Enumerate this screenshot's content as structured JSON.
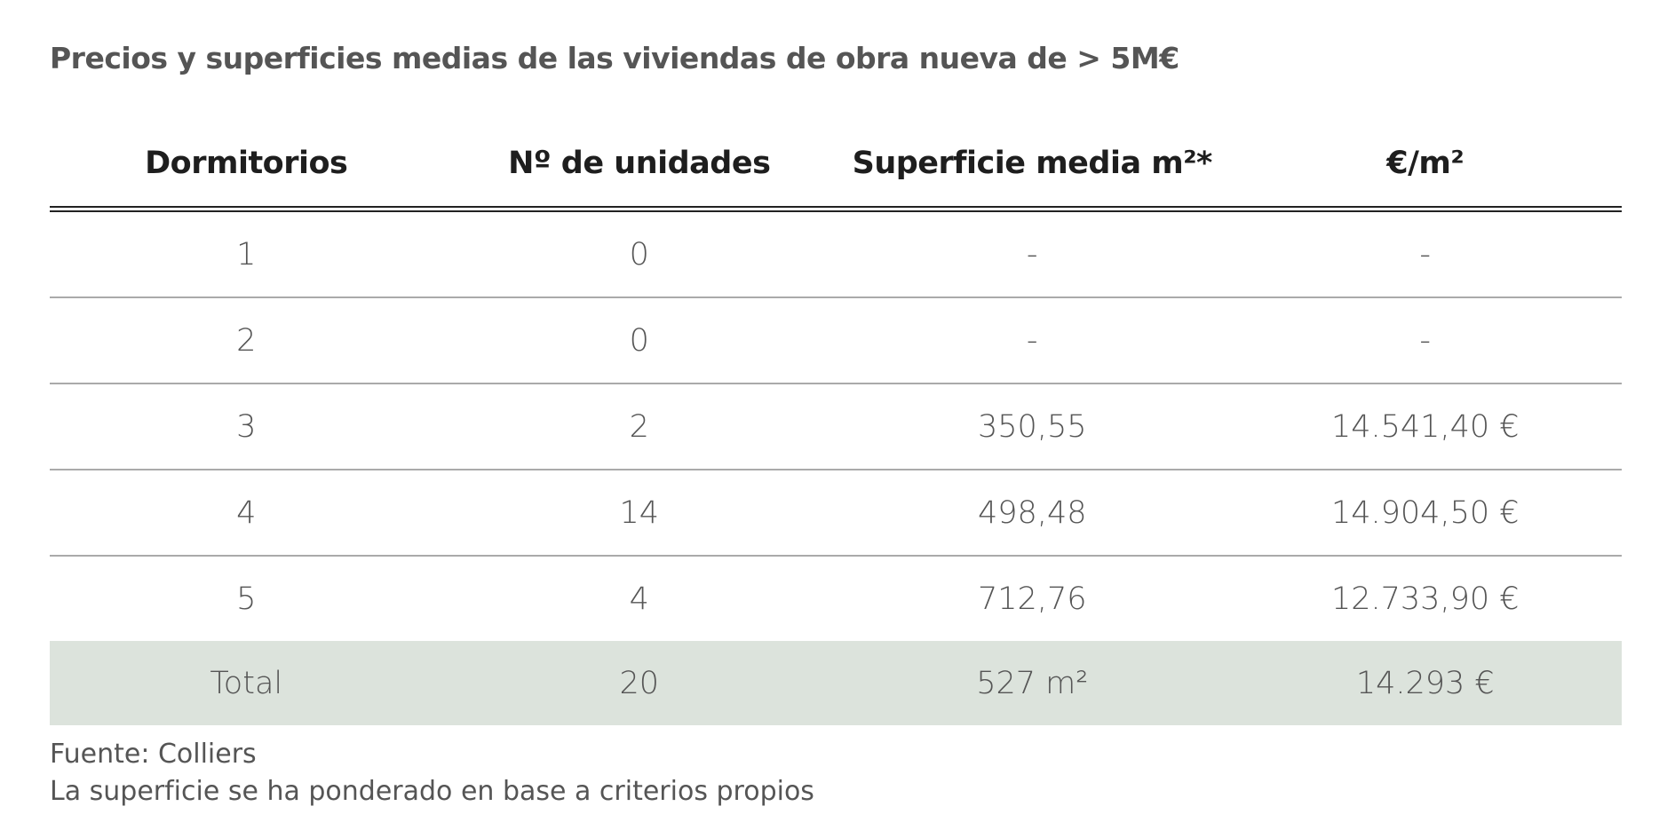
{
  "title": "Precios y superficies medias de las viviendas de obra nueva de > 5M€",
  "table": {
    "headers": [
      "Dormitorios",
      "Nº de unidades",
      "Superficie media m²*",
      "€/m²"
    ],
    "rows": [
      [
        "1",
        "0",
        "-",
        "-"
      ],
      [
        "2",
        "0",
        "-",
        "-"
      ],
      [
        "3",
        "2",
        "350,55",
        "14.541,40 €"
      ],
      [
        "4",
        "14",
        "498,48",
        "14.904,50 €"
      ],
      [
        "5",
        "4",
        "712,76",
        "12.733,90 €"
      ]
    ],
    "total": [
      "Total",
      "20",
      "527 m²",
      "14.293 €"
    ]
  },
  "footer": {
    "source": "Fuente: Colliers",
    "note": "La superficie se ha ponderado en base a criterios propios"
  }
}
